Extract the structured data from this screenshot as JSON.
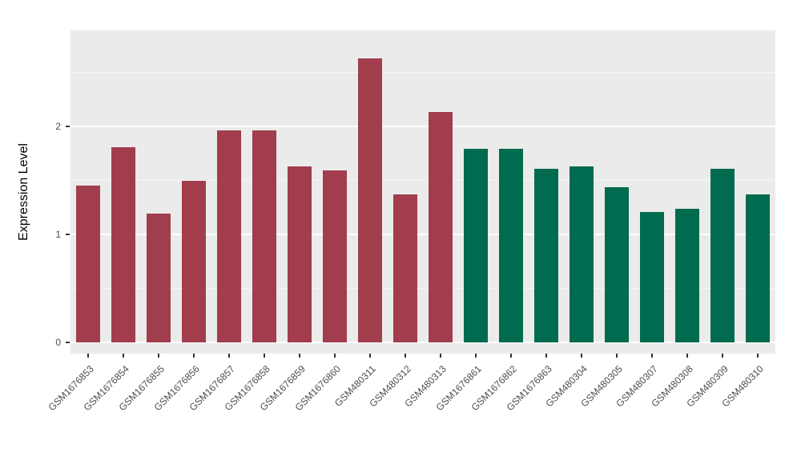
{
  "chart_data": {
    "type": "bar",
    "title": "",
    "xlabel": "",
    "ylabel": "Expression Level",
    "ylim": [
      0,
      2.89
    ],
    "yticks": [
      0,
      1,
      2
    ],
    "yticks_minor": [
      0.5,
      1.5,
      2.5
    ],
    "grid": "on",
    "legend": "none",
    "categories": [
      "GSM1676853",
      "GSM1676854",
      "GSM1676855",
      "GSM1676856",
      "GSM1676857",
      "GSM1676858",
      "GSM1676859",
      "GSM1676860",
      "GSM480311",
      "GSM480312",
      "GSM480313",
      "GSM1676861",
      "GSM1676862",
      "GSM1676863",
      "GSM480304",
      "GSM480305",
      "GSM480307",
      "GSM480308",
      "GSM480309",
      "GSM480310"
    ],
    "values": [
      1.45,
      1.81,
      1.19,
      1.5,
      1.96,
      1.96,
      1.63,
      1.59,
      2.63,
      1.37,
      2.13,
      1.79,
      1.79,
      1.61,
      1.63,
      1.44,
      1.21,
      1.24,
      1.61,
      1.37
    ],
    "groups": [
      "g1",
      "g1",
      "g1",
      "g1",
      "g1",
      "g1",
      "g1",
      "g1",
      "g1",
      "g1",
      "g1",
      "g2",
      "g2",
      "g2",
      "g2",
      "g2",
      "g2",
      "g2",
      "g2",
      "g2"
    ],
    "group_colors": {
      "g1": "#A23D4D",
      "g2": "#016B4F"
    }
  },
  "colors": {
    "figure_bg": "#FFFFFF",
    "panel_bg": "#EBEBEB",
    "grid_major": "#FFFFFF",
    "axis_text": "#4D4D4D",
    "axis_title": "#000000"
  }
}
